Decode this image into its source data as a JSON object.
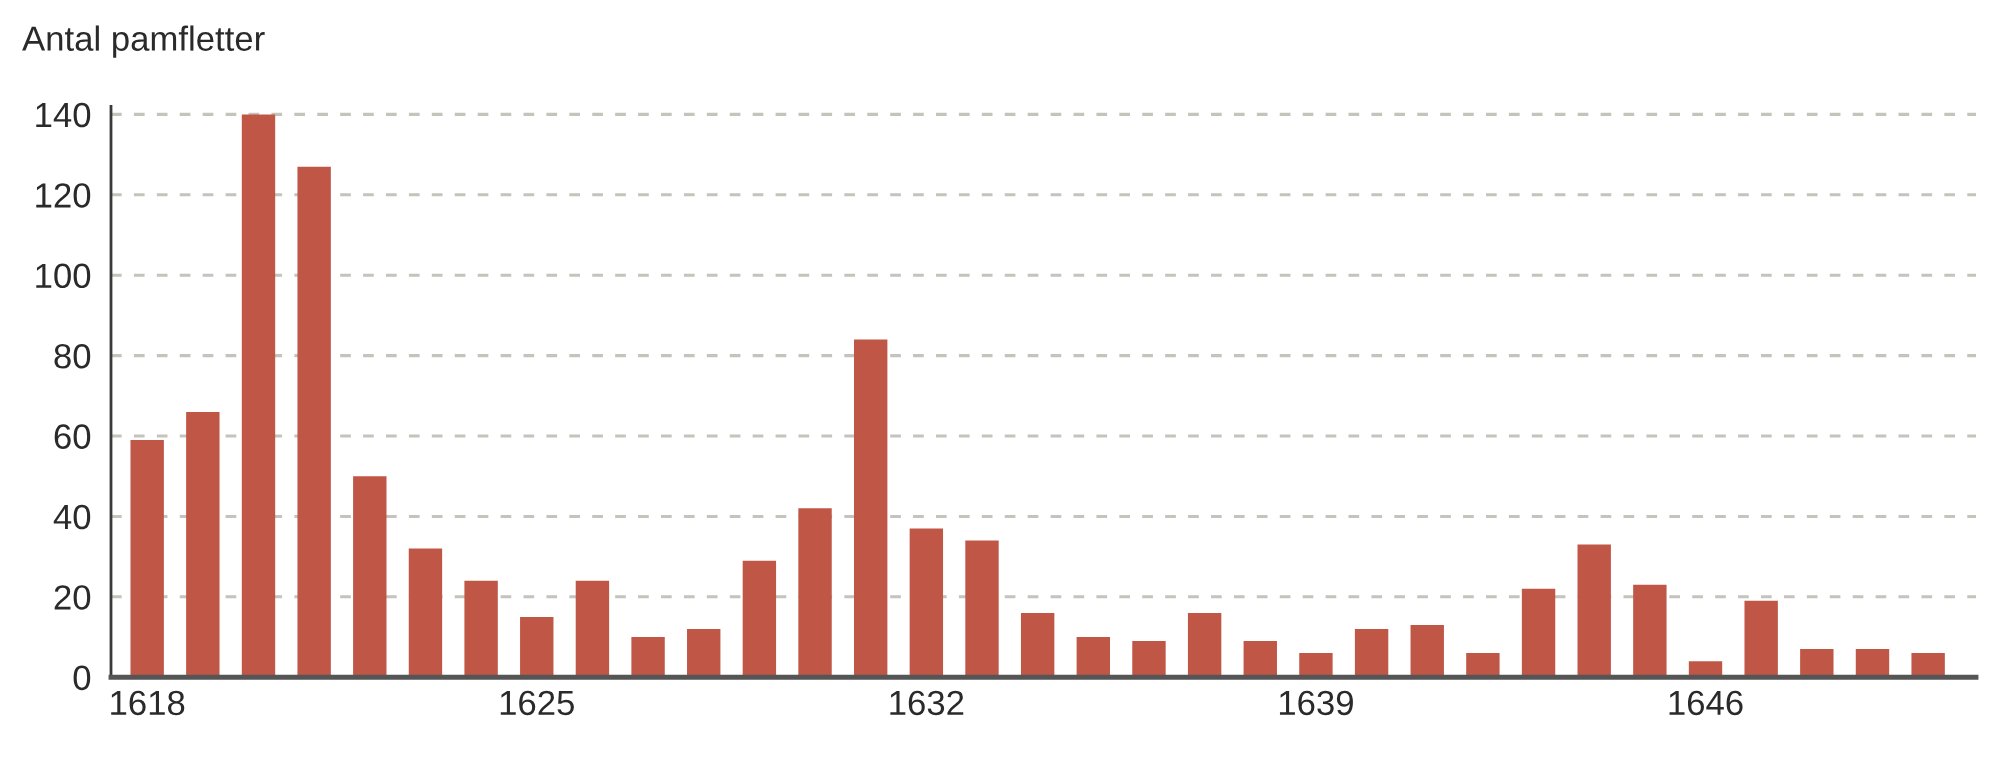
{
  "chart_data": {
    "type": "bar",
    "ylabel": "Antal pamfletter",
    "categories": [
      "1618",
      null,
      null,
      null,
      null,
      null,
      null,
      "1625",
      null,
      null,
      null,
      null,
      null,
      null,
      "1632",
      null,
      null,
      null,
      null,
      null,
      null,
      "1639",
      null,
      null,
      null,
      null,
      null,
      null,
      "1646",
      null,
      null,
      null,
      null
    ],
    "values": [
      59,
      66,
      140,
      127,
      50,
      32,
      24,
      15,
      24,
      10,
      12,
      29,
      42,
      84,
      37,
      34,
      16,
      10,
      9,
      16,
      9,
      6,
      12,
      13,
      6,
      22,
      33,
      23,
      4,
      19,
      7,
      7,
      6
    ],
    "color": "#c05646",
    "ylim": [
      0,
      142
    ],
    "yticks": [
      0,
      20,
      40,
      60,
      80,
      100,
      120,
      140
    ],
    "grid": "y"
  }
}
